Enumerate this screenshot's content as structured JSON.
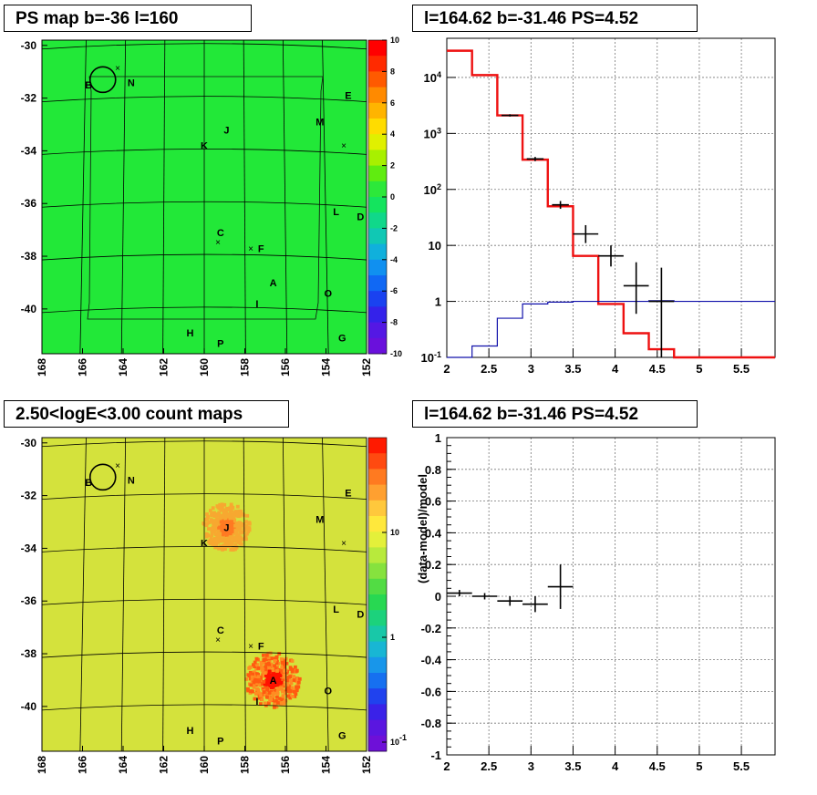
{
  "panels": {
    "tl": {
      "title": "PS map b=-36 l=160"
    },
    "tr": {
      "title": "l=164.62 b=-31.46 PS=4.52"
    },
    "bl": {
      "title": "2.50<logE<3.00 count maps"
    },
    "br": {
      "title": "l=164.62 b=-31.46 PS=4.52"
    }
  },
  "chart_data": [
    {
      "type": "heatmap",
      "title": "PS map b=-36 l=160",
      "xlabel": "",
      "ylabel": "",
      "x_ticks": [
        "168",
        "166",
        "164",
        "162",
        "160",
        "158",
        "156",
        "154",
        "152"
      ],
      "y_ticks": [
        "-30",
        "-32",
        "-34",
        "-36",
        "-38",
        "-40"
      ],
      "xlim": [
        168,
        152
      ],
      "ylim": [
        -41.7,
        -29.8
      ],
      "colorbar": {
        "range": [
          -10,
          10
        ],
        "ticks": [
          "10",
          "8",
          "6",
          "4",
          "2",
          "0",
          "-2",
          "-4",
          "-6",
          "-8",
          "-10"
        ]
      },
      "dominant_color": "#22e838",
      "sources": [
        {
          "label": "B",
          "l": 165.7,
          "b": -31.5
        },
        {
          "label": "N",
          "l": 163.6,
          "b": -31.4
        },
        {
          "label": "E",
          "l": 152.9,
          "b": -31.9
        },
        {
          "label": "M",
          "l": 154.3,
          "b": -32.9
        },
        {
          "label": "J",
          "l": 158.9,
          "b": -33.2
        },
        {
          "label": "K",
          "l": 160.0,
          "b": -33.8
        },
        {
          "label": "L",
          "l": 153.5,
          "b": -36.3
        },
        {
          "label": "D",
          "l": 152.3,
          "b": -36.5
        },
        {
          "label": "C",
          "l": 159.2,
          "b": -37.1
        },
        {
          "label": "F",
          "l": 157.2,
          "b": -37.7
        },
        {
          "label": "A",
          "l": 156.6,
          "b": -39.0
        },
        {
          "label": "O",
          "l": 153.9,
          "b": -39.4
        },
        {
          "label": "I",
          "l": 157.4,
          "b": -39.8
        },
        {
          "label": "H",
          "l": 160.7,
          "b": -40.9
        },
        {
          "label": "G",
          "l": 153.2,
          "b": -41.1
        },
        {
          "label": "P",
          "l": 159.2,
          "b": -41.3
        }
      ]
    },
    {
      "type": "line",
      "title": "l=164.62 b=-31.46 PS=4.52",
      "xlabel": "",
      "ylabel": "",
      "x_ticks": [
        "2",
        "2.5",
        "3",
        "3.5",
        "4",
        "4.5",
        "5",
        "5.5"
      ],
      "y_ticks": [
        "10^-1",
        "1",
        "10",
        "10^2",
        "10^3",
        "10^4"
      ],
      "xlim": [
        2,
        5.9
      ],
      "ylim": [
        0.1,
        50000
      ],
      "yscale": "log",
      "grid": true,
      "series": [
        {
          "color": "#ee1111",
          "bins": [
            [
              2.0,
              2.3,
              30000
            ],
            [
              2.3,
              2.6,
              11000
            ],
            [
              2.6,
              2.9,
              2100
            ],
            [
              2.9,
              3.2,
              340
            ],
            [
              3.2,
              3.5,
              50
            ],
            [
              3.5,
              3.8,
              6.5
            ],
            [
              3.8,
              4.1,
              0.9
            ],
            [
              4.1,
              4.4,
              0.27
            ],
            [
              4.4,
              4.7,
              0.14
            ],
            [
              4.7,
              5.9,
              0.1
            ]
          ]
        },
        {
          "color": "#1010aa",
          "bins": [
            [
              2.0,
              2.3,
              0.1
            ],
            [
              2.3,
              2.6,
              0.16
            ],
            [
              2.6,
              2.9,
              0.5
            ],
            [
              2.9,
              3.2,
              0.9
            ],
            [
              3.2,
              3.5,
              0.97
            ],
            [
              3.5,
              3.8,
              1.0
            ],
            [
              3.8,
              4.1,
              1.0
            ],
            [
              4.1,
              4.4,
              1.0
            ],
            [
              4.4,
              4.7,
              1.03
            ],
            [
              4.7,
              5.9,
              1.0
            ]
          ]
        },
        {
          "color": "#000000",
          "points": [
            [
              2.75,
              2100,
              0.1,
              2000,
              2200
            ],
            [
              3.05,
              350,
              0.1,
              320,
              380
            ],
            [
              3.35,
              53,
              0.1,
              45,
              62
            ],
            [
              3.65,
              16,
              0.15,
              11,
              23
            ],
            [
              3.95,
              6.5,
              0.15,
              4.2,
              10
            ],
            [
              4.25,
              1.9,
              0.15,
              0.6,
              5
            ],
            [
              4.55,
              1.0,
              0.15,
              0.1,
              4
            ]
          ]
        }
      ]
    },
    {
      "type": "heatmap",
      "title": "2.50<logE<3.00 count maps",
      "xlabel": "",
      "ylabel": "",
      "x_ticks": [
        "168",
        "166",
        "164",
        "162",
        "160",
        "158",
        "156",
        "154",
        "152"
      ],
      "y_ticks": [
        "-30",
        "-32",
        "-34",
        "-36",
        "-38",
        "-40"
      ],
      "xlim": [
        168,
        152
      ],
      "ylim": [
        -41.7,
        -29.8
      ],
      "colorbar": {
        "scale": "log",
        "ticks": [
          "10",
          "1",
          "10^-1"
        ]
      },
      "dominant_color": "#d4e23c",
      "bright_spots": [
        {
          "label": "A",
          "l": 156.6,
          "b": -39.0,
          "color": "#ff1a00"
        },
        {
          "label": "J",
          "l": 158.9,
          "b": -33.2,
          "color": "#ff9a20"
        }
      ],
      "sources": [
        {
          "label": "B",
          "l": 165.7,
          "b": -31.5
        },
        {
          "label": "N",
          "l": 163.6,
          "b": -31.4
        },
        {
          "label": "E",
          "l": 152.9,
          "b": -31.9
        },
        {
          "label": "M",
          "l": 154.3,
          "b": -32.9
        },
        {
          "label": "J",
          "l": 158.9,
          "b": -33.2
        },
        {
          "label": "K",
          "l": 160.0,
          "b": -33.8
        },
        {
          "label": "L",
          "l": 153.5,
          "b": -36.3
        },
        {
          "label": "D",
          "l": 152.3,
          "b": -36.5
        },
        {
          "label": "C",
          "l": 159.2,
          "b": -37.1
        },
        {
          "label": "F",
          "l": 157.2,
          "b": -37.7
        },
        {
          "label": "A",
          "l": 156.6,
          "b": -39.0
        },
        {
          "label": "O",
          "l": 153.9,
          "b": -39.4
        },
        {
          "label": "I",
          "l": 157.4,
          "b": -39.8
        },
        {
          "label": "H",
          "l": 160.7,
          "b": -40.9
        },
        {
          "label": "G",
          "l": 153.2,
          "b": -41.1
        },
        {
          "label": "P",
          "l": 159.2,
          "b": -41.3
        }
      ]
    },
    {
      "type": "scatter",
      "title": "l=164.62 b=-31.46 PS=4.52",
      "xlabel": "",
      "ylabel": "(data-model)/model",
      "x_ticks": [
        "2",
        "2.5",
        "3",
        "3.5",
        "4",
        "4.5",
        "5",
        "5.5"
      ],
      "y_ticks": [
        "1",
        "0.8",
        "0.6",
        "0.4",
        "0.2",
        "0",
        "-0.2",
        "-0.4",
        "-0.6",
        "-0.8",
        "-1"
      ],
      "xlim": [
        2,
        5.9
      ],
      "ylim": [
        -1,
        1
      ],
      "grid": true,
      "series": [
        {
          "color": "#000000",
          "points": [
            [
              2.15,
              0.02,
              0.15,
              0.0,
              0.04
            ],
            [
              2.45,
              0.0,
              0.15,
              -0.02,
              0.02
            ],
            [
              2.75,
              -0.03,
              0.15,
              -0.06,
              0.0
            ],
            [
              3.05,
              -0.05,
              0.15,
              -0.1,
              0.0
            ],
            [
              3.35,
              0.06,
              0.15,
              -0.08,
              0.2
            ]
          ]
        }
      ]
    }
  ]
}
